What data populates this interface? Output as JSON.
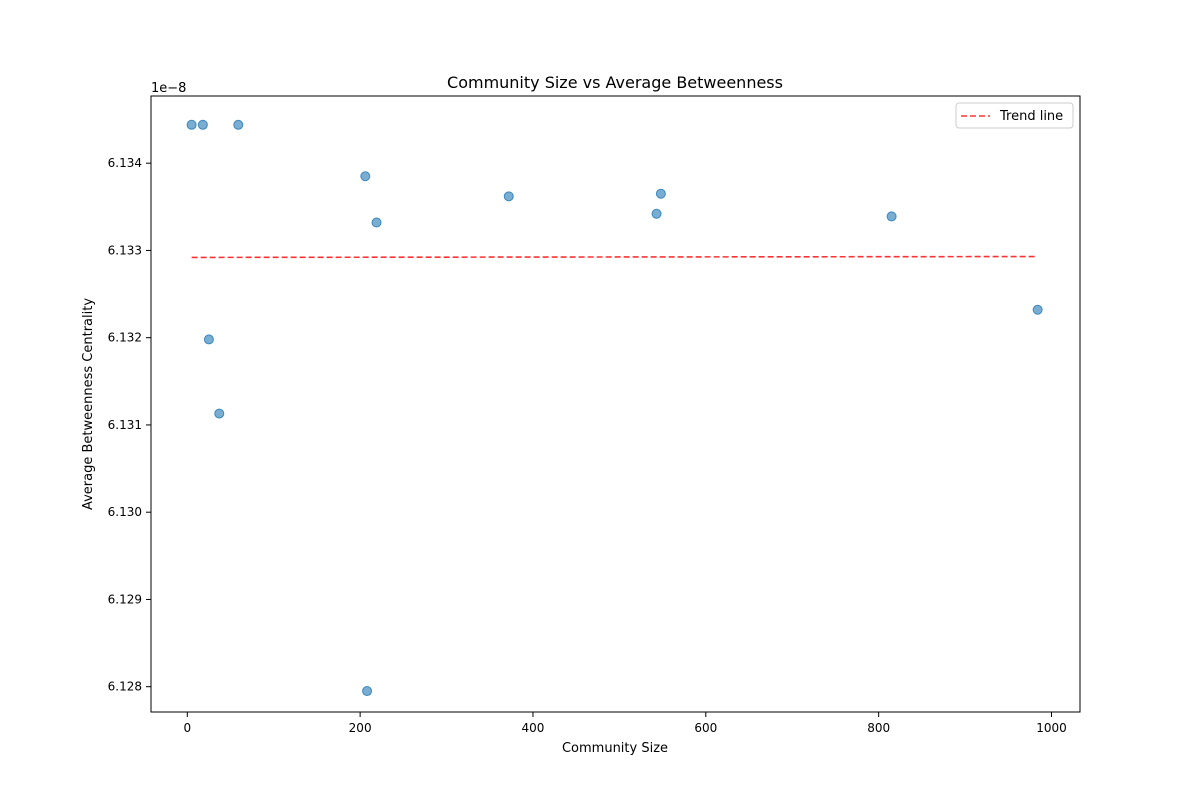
{
  "chart_data": {
    "type": "scatter",
    "title": "Community Size vs Average Betweenness",
    "xlabel": "Community Size",
    "ylabel": "Average Betweenness Centrality",
    "y_offset_label": "1e−8",
    "x_ticks": [
      0,
      200,
      400,
      600,
      800,
      1000
    ],
    "x_tick_labels": [
      "0",
      "200",
      "400",
      "600",
      "800",
      "1000"
    ],
    "y_ticks": [
      6.128,
      6.129,
      6.13,
      6.131,
      6.132,
      6.133,
      6.134
    ],
    "y_tick_labels": [
      "6.128",
      "6.129",
      "6.130",
      "6.131",
      "6.132",
      "6.133",
      "6.134"
    ],
    "xlim": [
      -42,
      1033
    ],
    "ylim": [
      6.12771,
      6.13477
    ],
    "grid": false,
    "legend_position": "top-right",
    "points_color": "#1f77b4",
    "trend_color": "#ff0000",
    "series": [
      {
        "values": [
          {
            "x": 5,
            "y": 6.13444
          },
          {
            "x": 18,
            "y": 6.13444
          },
          {
            "x": 59,
            "y": 6.13444
          },
          {
            "x": 206,
            "y": 6.13385
          },
          {
            "x": 219,
            "y": 6.13332
          },
          {
            "x": 372,
            "y": 6.13362
          },
          {
            "x": 548,
            "y": 6.13365
          },
          {
            "x": 543,
            "y": 6.13342
          },
          {
            "x": 815,
            "y": 6.13339
          },
          {
            "x": 984,
            "y": 6.13232
          },
          {
            "x": 25,
            "y": 6.13198
          },
          {
            "x": 37,
            "y": 6.13113
          },
          {
            "x": 208,
            "y": 6.12795
          }
        ]
      },
      {
        "name": "Trend line",
        "type": "line",
        "values": [
          {
            "x": 5,
            "y": 6.13292
          },
          {
            "x": 984,
            "y": 6.13293
          }
        ]
      }
    ]
  }
}
